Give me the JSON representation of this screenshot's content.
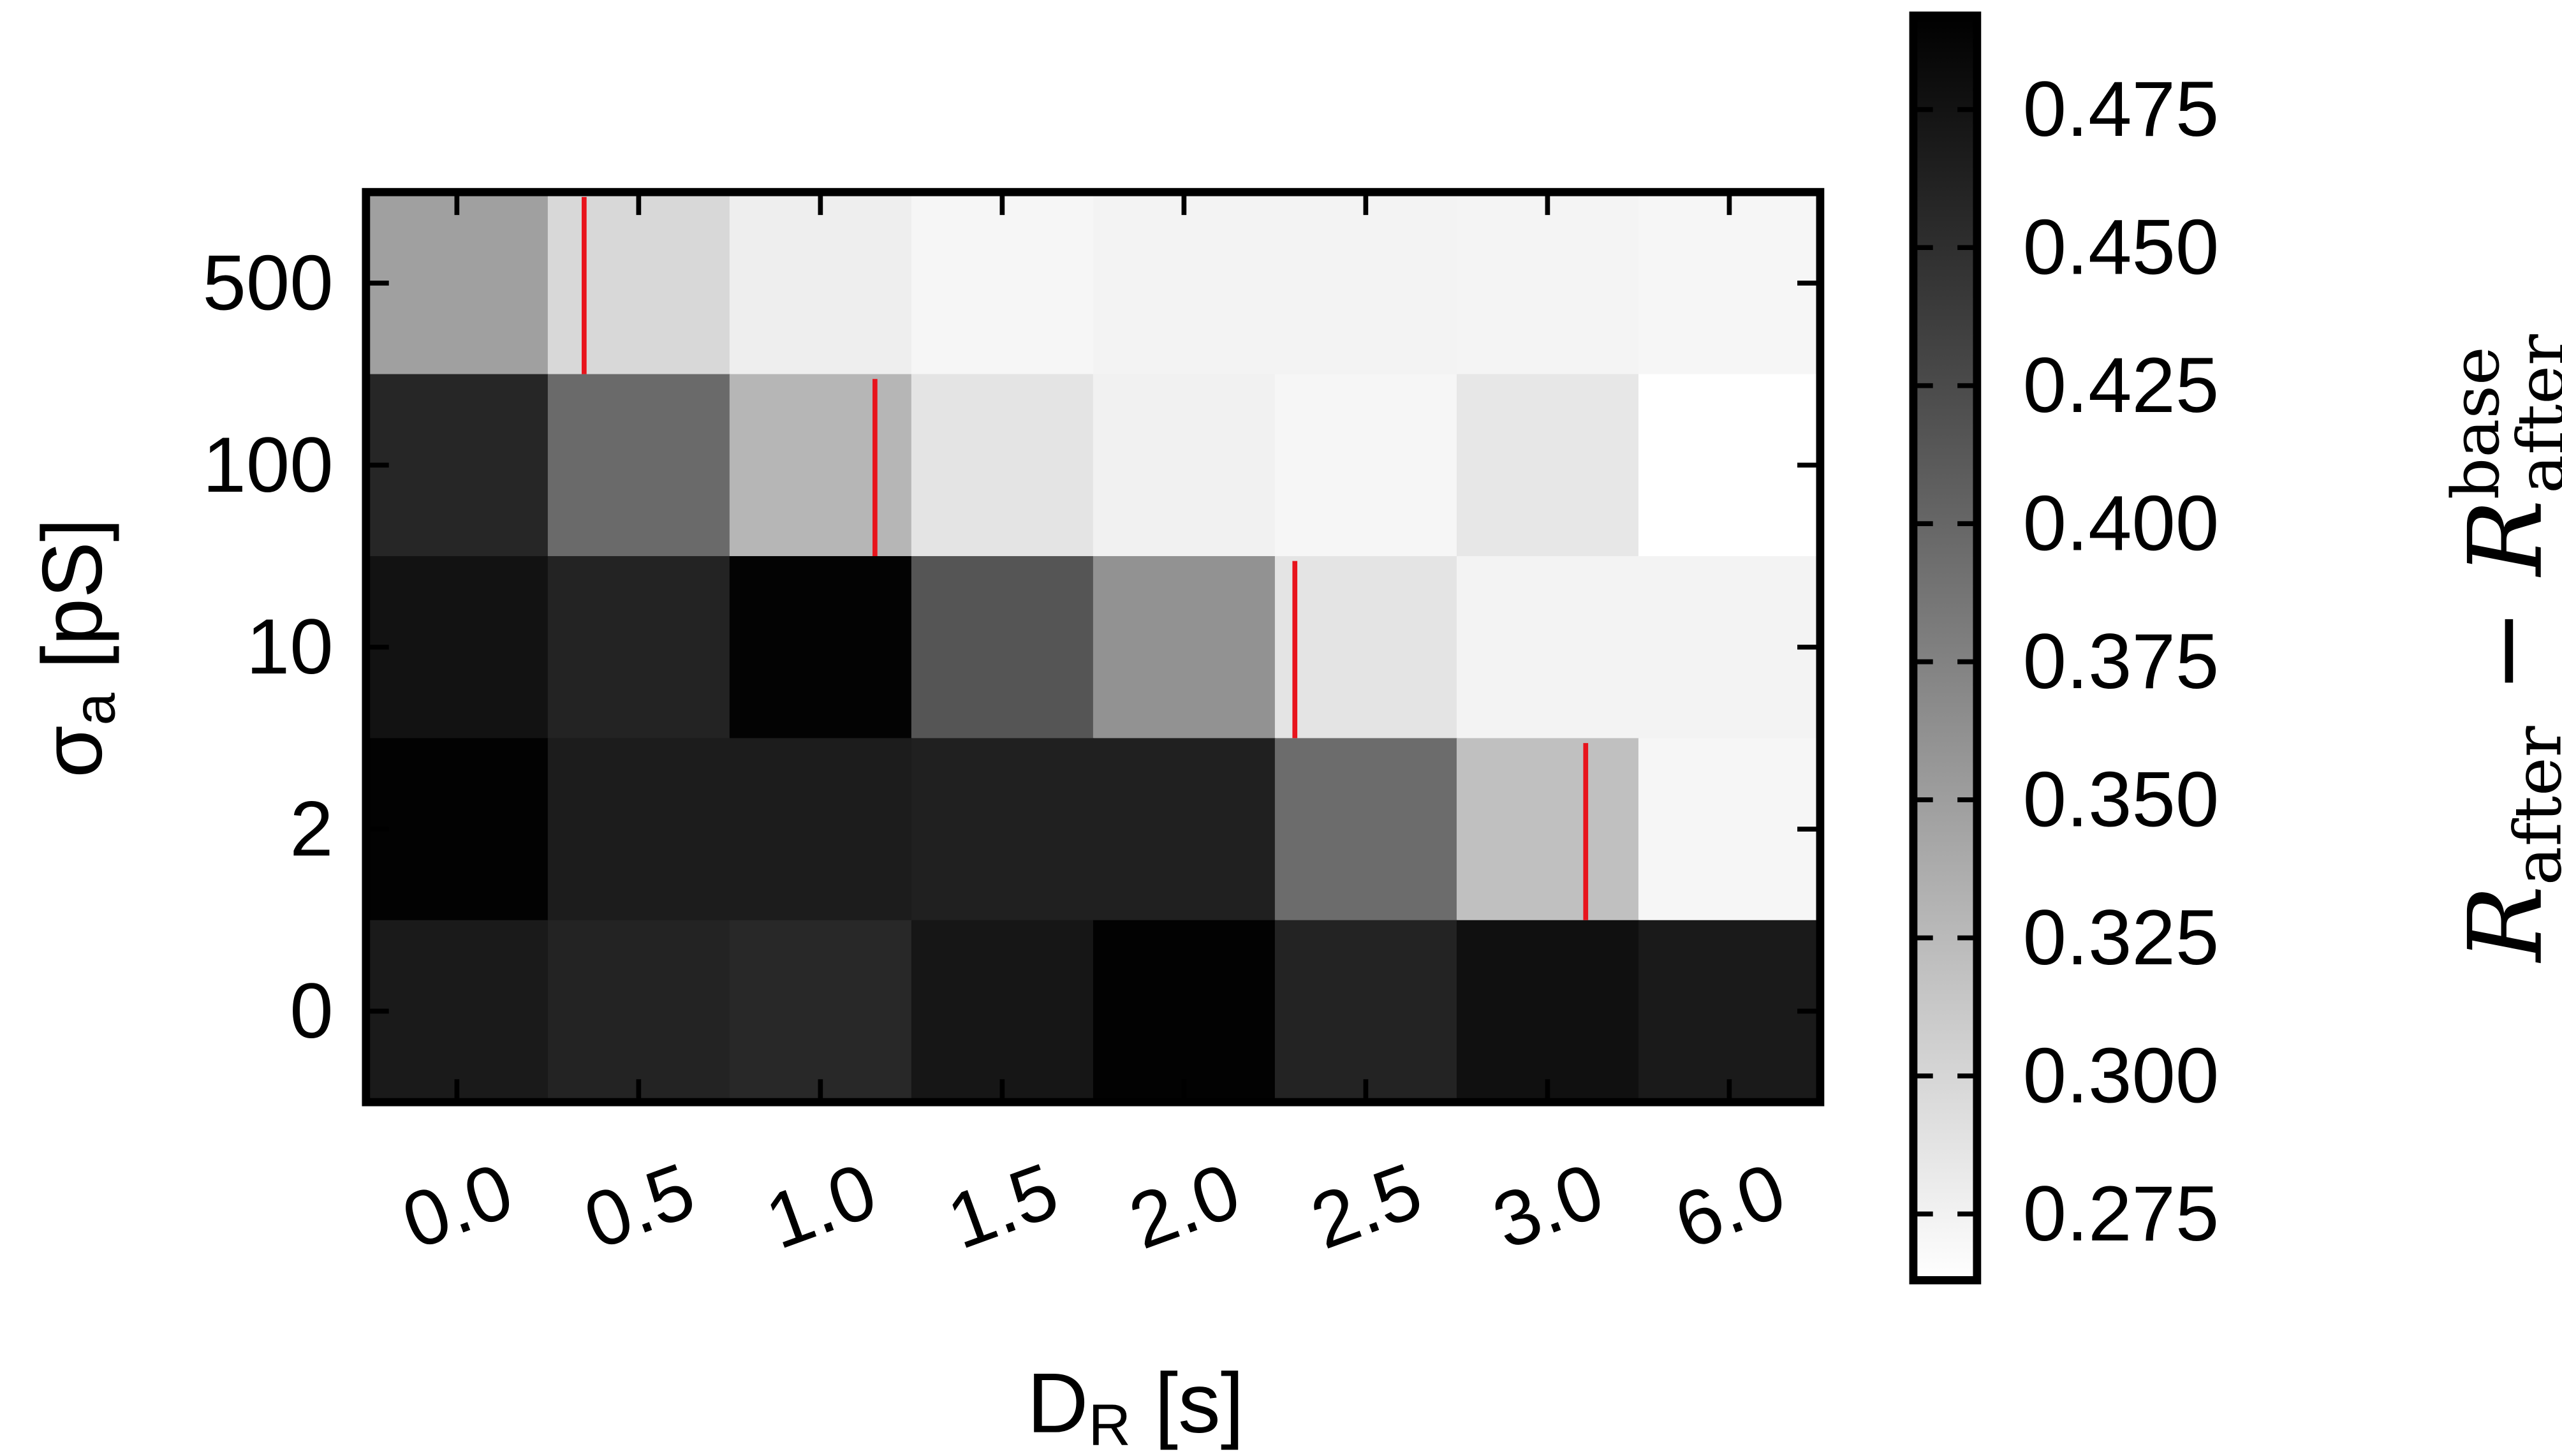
{
  "chart_data": {
    "type": "heatmap",
    "x_label": [
      "D",
      "R",
      " [s]"
    ],
    "y_label": [
      "σ",
      "a",
      " [pS]"
    ],
    "colorbar_label": [
      "R",
      "after",
      "−",
      "R",
      "base",
      "after"
    ],
    "x_categories": [
      "0.0",
      "0.5",
      "1.0",
      "1.5",
      "2.0",
      "2.5",
      "3.0",
      "6.0"
    ],
    "y_categories": [
      "500",
      "100",
      "10",
      "2",
      "0"
    ],
    "values": [
      [
        0.348,
        0.298,
        0.278,
        0.271,
        0.274,
        0.274,
        0.273,
        0.271
      ],
      [
        0.458,
        0.397,
        0.329,
        0.287,
        0.276,
        0.271,
        0.285,
        0.263
      ],
      [
        0.476,
        0.461,
        0.489,
        0.416,
        0.361,
        0.287,
        0.274,
        0.274
      ],
      [
        0.49,
        0.467,
        0.467,
        0.463,
        0.463,
        0.395,
        0.32,
        0.271
      ],
      [
        0.469,
        0.461,
        0.456,
        0.472,
        0.49,
        0.461,
        0.478,
        0.469
      ]
    ],
    "colormap": "gray_r",
    "clim": [
      0.263,
      0.492
    ],
    "cticks": [
      0.275,
      {
        "value": 0.3,
        "label": "0.300"
      },
      0.325,
      {
        "value": 0.35,
        "label": "0.350"
      },
      0.375,
      {
        "value": 0.4,
        "label": "0.400"
      },
      0.425,
      {
        "value": 0.45,
        "label": "0.450"
      },
      0.475
    ],
    "threshold_positions": [
      0.7,
      2.3,
      4.61,
      6.21,
      null
    ],
    "threshold_color": "#e8141c"
  }
}
